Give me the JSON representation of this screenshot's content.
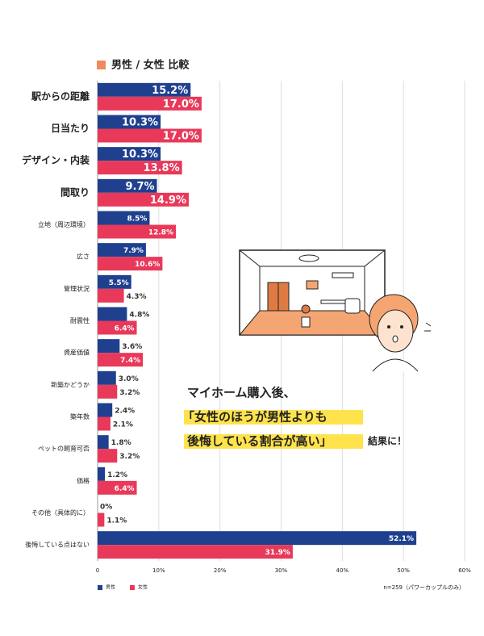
{
  "chart_data": {
    "type": "hbar",
    "title": "男性 / 女性 比較",
    "categories": [
      "駅からの距離",
      "日当たり",
      "デザイン・内装",
      "間取り",
      "立地（周辺環境）",
      "広さ",
      "管理状況",
      "耐震性",
      "資産価値",
      "新築かどうか",
      "築年数",
      "ペットの飼育可否",
      "価格",
      "その他（具体的に）",
      "後悔している点はない"
    ],
    "series": [
      {
        "name": "男性",
        "color": "#1f3f8f",
        "values": [
          15.2,
          10.3,
          10.3,
          9.7,
          8.5,
          7.9,
          5.5,
          4.8,
          3.6,
          3.0,
          2.4,
          1.8,
          1.2,
          0,
          52.1
        ],
        "value_labels": [
          "15.2%",
          "10.3%",
          "10.3%",
          "9.7%",
          "8.5%",
          "7.9%",
          "5.5%",
          "4.8%",
          "3.6%",
          "3.0%",
          "2.4%",
          "1.8%",
          "1.2%",
          "0%",
          "52.1%"
        ]
      },
      {
        "name": "女性",
        "color": "#e8395a",
        "values": [
          17.0,
          17.0,
          13.8,
          14.9,
          12.8,
          10.6,
          4.3,
          6.4,
          7.4,
          3.2,
          2.1,
          3.2,
          6.4,
          1.1,
          31.9
        ],
        "value_labels": [
          "17.0%",
          "17.0%",
          "13.8%",
          "14.9%",
          "12.8%",
          "10.6%",
          "4.3%",
          "6.4%",
          "7.4%",
          "3.2%",
          "2.1%",
          "3.2%",
          "6.4%",
          "1.1%",
          "31.9%"
        ]
      }
    ],
    "xlim": [
      0,
      60
    ],
    "xticks": [
      0,
      {
        "value": 10,
        "label": "10%"
      },
      {
        "value": 20,
        "label": "20%"
      },
      {
        "value": 30,
        "label": "30%"
      },
      {
        "value": 40,
        "label": "40%"
      },
      {
        "value": 50,
        "label": "50%"
      },
      {
        "value": 60,
        "label": "60%"
      }
    ],
    "grid": true,
    "note": "n=259（パワーカップルのみ）",
    "annotation": [
      "マイホーム購入後、",
      "「女性のほうが男性よりも",
      "後悔している割合が高い」",
      "結果に！"
    ]
  }
}
